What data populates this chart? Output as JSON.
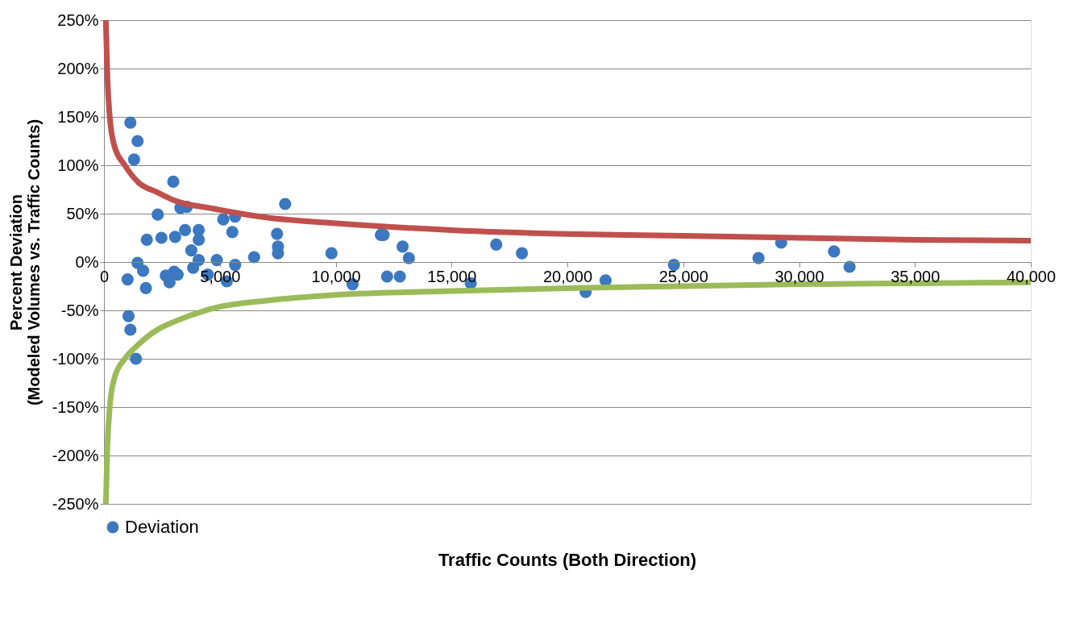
{
  "chart_data": {
    "type": "scatter",
    "xlabel": "Traffic Counts (Both Direction)",
    "ylabel": "Percent Deviation\n(Modeled Volumes vs. Traffic Counts)",
    "xlim": [
      0,
      40000
    ],
    "xticks": [
      {
        "value": 0,
        "label": "0"
      },
      {
        "value": 5000,
        "label": "5,000"
      },
      {
        "value": 10000,
        "label": "10,000"
      },
      {
        "value": 15000,
        "label": "15,000"
      },
      {
        "value": 20000,
        "label": "20,000"
      },
      {
        "value": 25000,
        "label": "25,000"
      },
      {
        "value": 30000,
        "label": "30,000"
      },
      {
        "value": 35000,
        "label": "35,000"
      },
      {
        "value": 40000,
        "label": "40,000"
      }
    ],
    "ylim": [
      -250,
      250
    ],
    "yticks": [
      {
        "value": -250,
        "label": "-250%"
      },
      {
        "value": -200,
        "label": "-200%"
      },
      {
        "value": -150,
        "label": "-150%"
      },
      {
        "value": -100,
        "label": "-100%"
      },
      {
        "value": -50,
        "label": "-50%"
      },
      {
        "value": 0,
        "label": "0%"
      },
      {
        "value": 50,
        "label": "50%"
      },
      {
        "value": 100,
        "label": "100%"
      },
      {
        "value": 150,
        "label": "150%"
      },
      {
        "value": 200,
        "label": "200%"
      },
      {
        "value": 250,
        "label": "250%"
      }
    ],
    "grid": "y",
    "legend": "bottom",
    "series": [
      {
        "name": "Deviation",
        "marker": "circle",
        "color": "#3b78c0",
        "x": [
          1140,
          1450,
          1300,
          2990,
          7820,
          2320,
          3300,
          3580,
          5150,
          5660,
          5540,
          3500,
          4090,
          1850,
          2480,
          3070,
          4090,
          7470,
          7510,
          7510,
          3770,
          6480,
          9820,
          11950,
          12070,
          12890,
          13160,
          16930,
          18040,
          12220,
          12770,
          15830,
          10730,
          24600,
          28250,
          29230,
          31510,
          32180,
          21650,
          20790,
          1450,
          1690,
          1020,
          1810,
          3030,
          3180,
          2670,
          2830,
          3850,
          4090,
          4870,
          5660,
          4480,
          5300,
          1060,
          1140,
          1380
        ],
        "values": [
          144,
          125,
          106,
          83,
          60,
          49,
          56,
          57,
          44,
          47,
          31,
          33,
          33,
          23,
          25,
          26,
          23,
          29,
          16,
          9,
          12,
          5,
          9,
          28,
          28,
          16,
          4,
          18,
          9,
          -15,
          -15,
          -22,
          -23,
          -3,
          4,
          20,
          11,
          -5,
          -19,
          -31,
          -1,
          -9,
          -18,
          -27,
          -10,
          -13,
          -14,
          -21,
          -6,
          2,
          2,
          -3,
          -13,
          -20,
          -56,
          -70,
          -100
        ]
      },
      {
        "type": "line",
        "color": "#c0504d",
        "x": [
          80,
          150,
          250,
          450,
          900,
          1500,
          2300,
          3000,
          4750,
          7000,
          10000,
          15000,
          20000,
          25000,
          30000,
          35000,
          40000
        ],
        "values": [
          250,
          190,
          150,
          120,
          100,
          82,
          72,
          64,
          55,
          46,
          40,
          33,
          29,
          27,
          25,
          23,
          22
        ]
      },
      {
        "type": "line",
        "color": "#9bbb59",
        "x": [
          80,
          150,
          250,
          450,
          900,
          1500,
          2300,
          3000,
          4870,
          7000,
          10000,
          15000,
          20000,
          25000,
          30000,
          35000,
          40000
        ],
        "values": [
          -250,
          -190,
          -150,
          -120,
          -100,
          -85,
          -70,
          -62,
          -47,
          -40,
          -34,
          -30,
          -27,
          -25,
          -23,
          -22,
          -21
        ]
      }
    ]
  }
}
